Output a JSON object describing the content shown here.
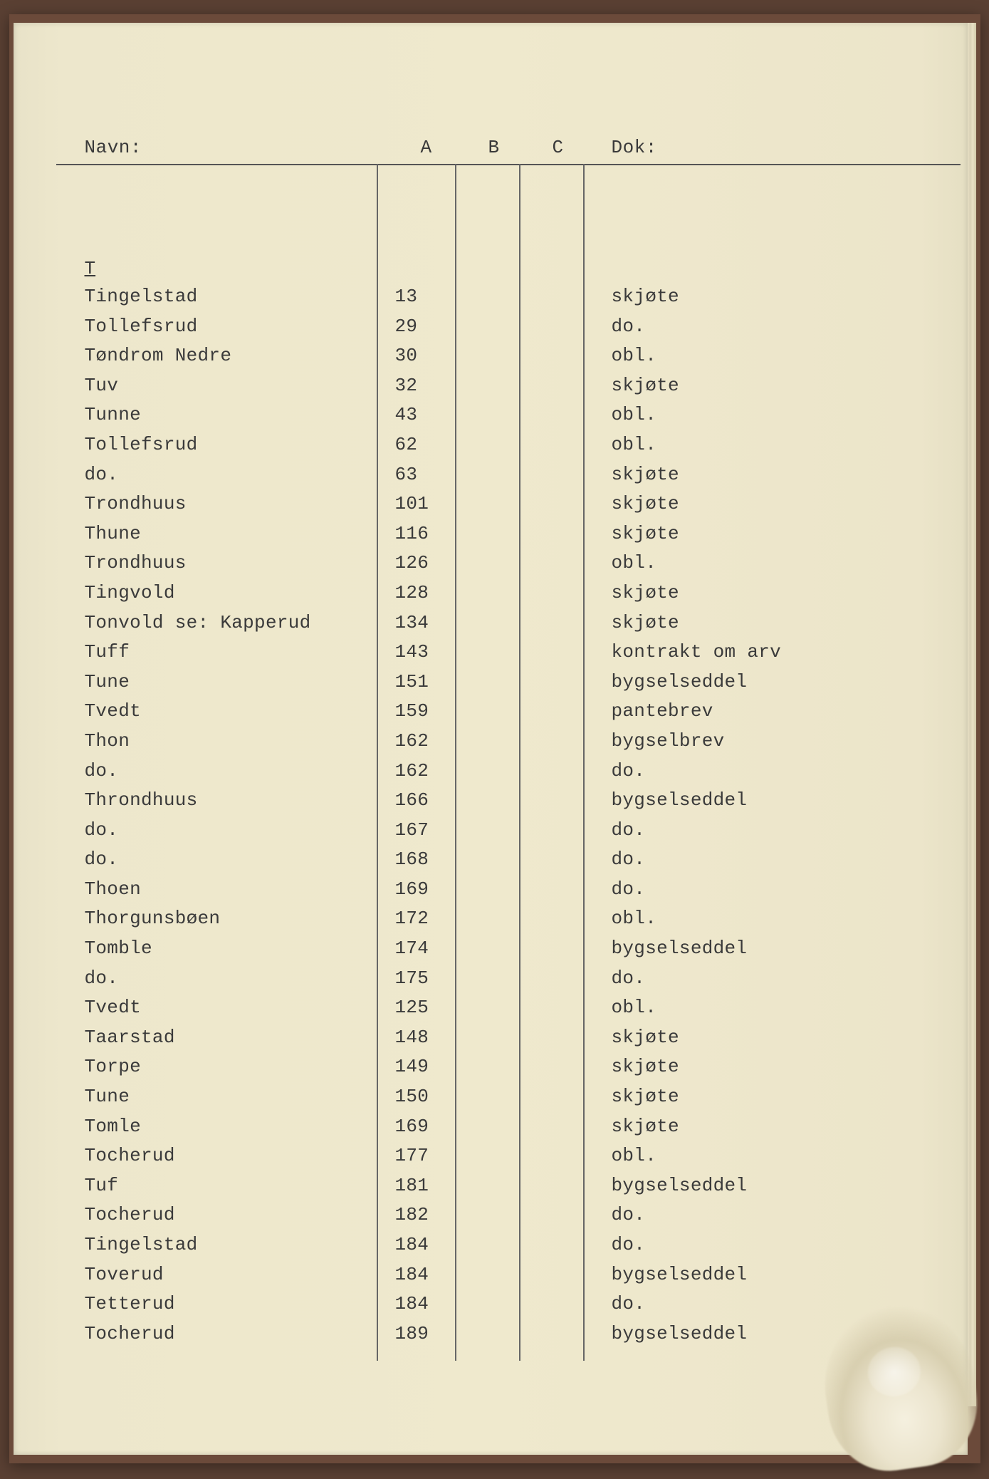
{
  "header": {
    "navn": "Navn:",
    "a": "A",
    "b": "B",
    "c": "C",
    "dok": "Dok:"
  },
  "section_letter": "T",
  "entries": [
    {
      "navn": "Tingelstad",
      "a": "13",
      "dok": "skjøte"
    },
    {
      "navn": "Tollefsrud",
      "a": "29",
      "dok": "do."
    },
    {
      "navn": "Tøndrom Nedre",
      "a": "30",
      "dok": "obl."
    },
    {
      "navn": "Tuv",
      "a": "32",
      "dok": "skjøte"
    },
    {
      "navn": "Tunne",
      "a": "43",
      "dok": "obl."
    },
    {
      "navn": "Tollefsrud",
      "a": "62",
      "dok": "obl."
    },
    {
      "navn": "do.",
      "a": "63",
      "dok": "skjøte"
    },
    {
      "navn": "Trondhuus",
      "a": "101",
      "dok": "skjøte"
    },
    {
      "navn": "Thune",
      "a": "116",
      "dok": "skjøte"
    },
    {
      "navn": "Trondhuus",
      "a": "126",
      "dok": "obl."
    },
    {
      "navn": "Tingvold",
      "a": "128",
      "dok": "skjøte"
    },
    {
      "navn": "Tonvold se: Kapperud",
      "a": "134",
      "dok": "skjøte"
    },
    {
      "navn": "Tuff",
      "a": "143",
      "dok": "kontrakt om arv"
    },
    {
      "navn": "Tune",
      "a": "151",
      "dok": "bygselseddel"
    },
    {
      "navn": "Tvedt",
      "a": "159",
      "dok": "pantebrev"
    },
    {
      "navn": "Thon",
      "a": "162",
      "dok": "bygselbrev"
    },
    {
      "navn": "do.",
      "a": "162",
      "dok": "do."
    },
    {
      "navn": "Throndhuus",
      "a": "166",
      "dok": "bygselseddel"
    },
    {
      "navn": "do.",
      "a": "167",
      "dok": "do."
    },
    {
      "navn": "do.",
      "a": "168",
      "dok": "do."
    },
    {
      "navn": "Thoen",
      "a": "169",
      "dok": "do."
    },
    {
      "navn": "Thorgunsbøen",
      "a": "172",
      "dok": "obl."
    },
    {
      "navn": "Tomble",
      "a": "174",
      "dok": "bygselseddel"
    },
    {
      "navn": "do.",
      "a": "175",
      "dok": "do."
    },
    {
      "navn": "Tvedt",
      "a": "125",
      "dok": "obl."
    },
    {
      "navn": "Taarstad",
      "a": "148",
      "dok": "skjøte"
    },
    {
      "navn": "Torpe",
      "a": "149",
      "dok": "skjøte"
    },
    {
      "navn": "Tune",
      "a": "150",
      "dok": "skjøte"
    },
    {
      "navn": "Tomle",
      "a": "169",
      "dok": "skjøte"
    },
    {
      "navn": "Tocherud",
      "a": "177",
      "dok": "obl."
    },
    {
      "navn": "Tuf",
      "a": "181",
      "dok": "bygselseddel"
    },
    {
      "navn": "Tocherud",
      "a": "182",
      "dok": "do."
    },
    {
      "navn": "Tingelstad",
      "a": "184",
      "dok": "do."
    },
    {
      "navn": "Toverud",
      "a": "184",
      "dok": "bygselseddel"
    },
    {
      "navn": "Tetterud",
      "a": "184",
      "dok": "do."
    },
    {
      "navn": "Tocherud",
      "a": "189",
      "dok": "bygselseddel"
    }
  ]
}
